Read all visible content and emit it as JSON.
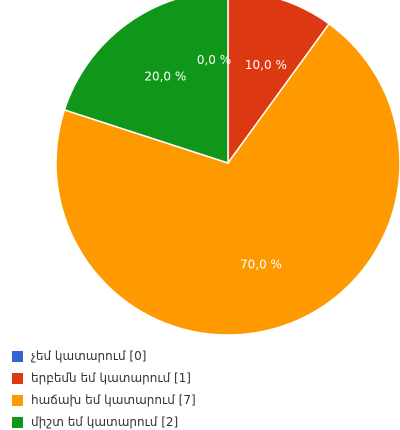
{
  "chart_data": {
    "type": "pie",
    "title": "",
    "categories": [
      "չեմ կատարում",
      "երբեմն եմ կատարում",
      "հաճախ եմ կատարում",
      "միշտ եմ կատարում"
    ],
    "values": [
      0,
      1,
      7,
      2
    ],
    "percent_labels": [
      "0,0 %",
      "10,0 %",
      "70,0 %",
      "20,0 %"
    ],
    "colors": [
      "#3366cc",
      "#dc3912",
      "#ff9900",
      "#109618"
    ],
    "legend_labels": [
      "չեմ կատարում  [0]",
      "երբեմն եմ կատարում  [1]",
      "հաճախ եմ կատարում  [7]",
      "միշտ եմ կատարում  [2]"
    ],
    "legend_position": "bottom-left",
    "start": "top",
    "direction": "clockwise"
  }
}
